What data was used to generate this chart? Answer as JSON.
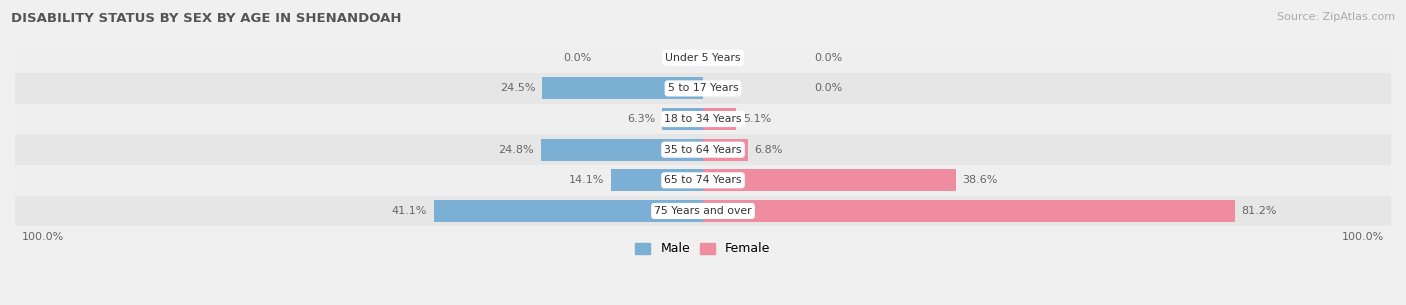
{
  "title": "DISABILITY STATUS BY SEX BY AGE IN SHENANDOAH",
  "source": "Source: ZipAtlas.com",
  "categories": [
    "Under 5 Years",
    "5 to 17 Years",
    "18 to 34 Years",
    "35 to 64 Years",
    "65 to 74 Years",
    "75 Years and over"
  ],
  "male_values": [
    0.0,
    24.5,
    6.3,
    24.8,
    14.1,
    41.1
  ],
  "female_values": [
    0.0,
    0.0,
    5.1,
    6.8,
    38.6,
    81.2
  ],
  "male_color": "#7bafd4",
  "female_color": "#f08ca0",
  "row_bg_colors": [
    "#efefef",
    "#e6e6e6",
    "#efefef",
    "#e6e6e6",
    "#efefef",
    "#e6e6e6"
  ],
  "title_color": "#555555",
  "label_color": "#666666",
  "figsize": [
    14.06,
    3.05
  ],
  "dpi": 100
}
